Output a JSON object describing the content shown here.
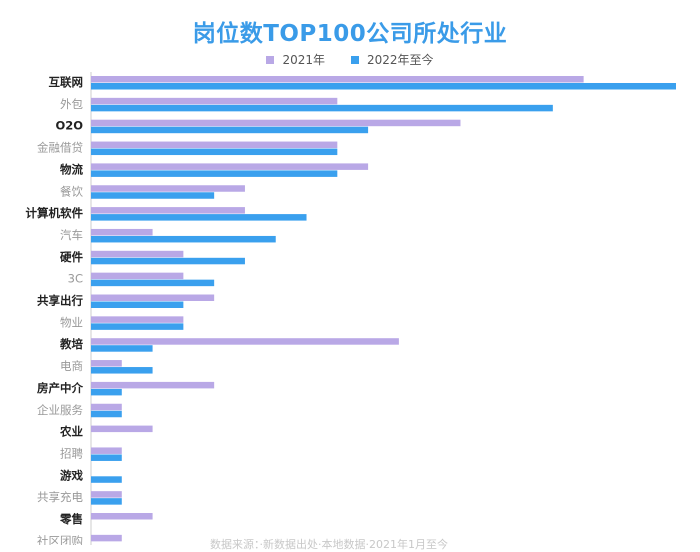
{
  "chart_data": {
    "type": "bar",
    "orientation": "horizontal",
    "title": "岗位数TOP100公司所处行业",
    "xlabel": "",
    "ylabel": "",
    "xlim": [
      0,
      19
    ],
    "grid": false,
    "legend_position": "top-center",
    "categories": [
      "互联网",
      "外包",
      "O2O",
      "金融借贷",
      "物流",
      "餐饮",
      "计算机软件",
      "汽车",
      "硬件",
      "3C",
      "共享出行",
      "物业",
      "教培",
      "电商",
      "房产中介",
      "企业服务",
      "农业",
      "招聘",
      "游戏",
      "共享充电",
      "零售",
      "社区团购"
    ],
    "category_bold": [
      true,
      false,
      true,
      false,
      true,
      false,
      true,
      false,
      true,
      false,
      true,
      false,
      true,
      false,
      true,
      false,
      true,
      false,
      true,
      false,
      true,
      false
    ],
    "series": [
      {
        "name": "2021年",
        "color": "#b9a8e6",
        "values": [
          16,
          8,
          12,
          8,
          9,
          5,
          5,
          2,
          3,
          3,
          4,
          3,
          10,
          1,
          4,
          1,
          2,
          1,
          0,
          1,
          2,
          1
        ]
      },
      {
        "name": "2022年至今",
        "color": "#3aa0ee",
        "values": [
          19,
          15,
          9,
          8,
          8,
          4,
          7,
          6,
          5,
          4,
          3,
          3,
          2,
          2,
          1,
          1,
          0,
          1,
          1,
          1,
          0,
          0
        ]
      }
    ]
  },
  "footnote": "数据来源：·新数据出处·本地数据·2021年1月至今"
}
